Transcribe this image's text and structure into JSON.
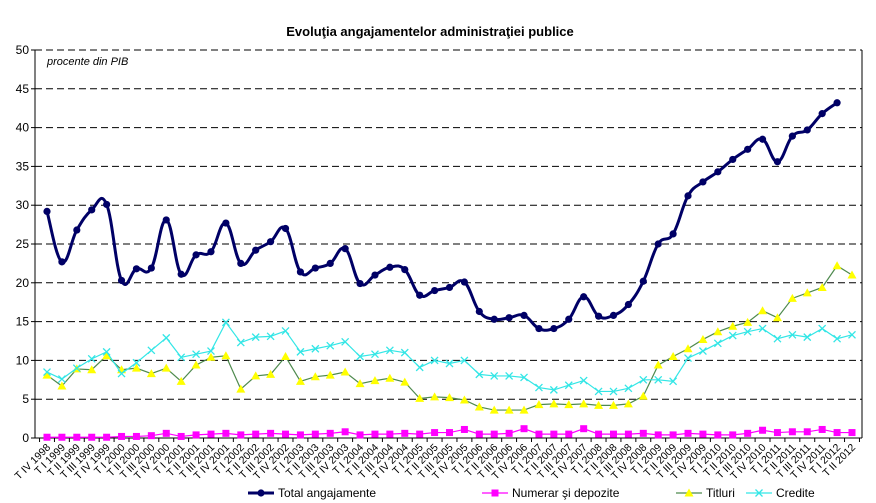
{
  "chart_data": {
    "type": "line",
    "title": "Evoluţia angajamentelor administraţiei publice",
    "unit_label": "procente din PIB",
    "xlabel": "",
    "ylabel": "procente din PIB",
    "ylim": [
      0,
      50
    ],
    "yticks": [
      0,
      5,
      10,
      15,
      20,
      25,
      30,
      35,
      40,
      45,
      50
    ],
    "grid": "horizontal dashed",
    "legend_position": "bottom",
    "categories": [
      "T IV 1998",
      "T I 1999",
      "T II 1999",
      "T III 1999",
      "T IV 1999",
      "T I 2000",
      "T II 2000",
      "T III 2000",
      "T IV 2000",
      "T I 2001",
      "T II 2001",
      "T III 2001",
      "T IV 2001",
      "T I 2002",
      "T II 2002",
      "T III 2002",
      "T IV 2002",
      "T I 2003",
      "T II 2003",
      "T III 2003",
      "T IV 2003",
      "T I 2004",
      "T II 2004",
      "T III 2004",
      "T IV 2004",
      "T I 2005",
      "T II 2005",
      "T III 2005",
      "T IV 2005",
      "T I 2006",
      "T II 2006",
      "T III 2006",
      "T IV 2006",
      "T I 2007",
      "T II 2007",
      "T III 2007",
      "T IV 2007",
      "T I 2008",
      "T II 2008",
      "T III 2008",
      "T IV 2008",
      "T I 2009",
      "T II 2009",
      "T III 2009",
      "T IV 2009",
      "T I 2010",
      "T II 2010",
      "T III 2010",
      "T IV 2010",
      "T I 2011",
      "T II 2011",
      "T III 2011",
      "T IV 2011",
      "T I 2012",
      "T II 2012"
    ],
    "series": [
      {
        "name": "Total angajamente",
        "color": "#000066",
        "marker": "circle",
        "smooth": true,
        "values": [
          29.2,
          22.7,
          26.8,
          29.4,
          30.1,
          20.3,
          21.8,
          21.9,
          28.1,
          21.1,
          23.6,
          24.0,
          27.7,
          22.5,
          24.2,
          25.3,
          27.0,
          21.4,
          21.9,
          22.5,
          24.4,
          19.9,
          21.0,
          22.0,
          21.7,
          18.4,
          19.0,
          19.4,
          20.1,
          16.3,
          15.3,
          15.5,
          15.8,
          14.1,
          14.1,
          15.3,
          18.2,
          15.7,
          15.8,
          17.2,
          20.2,
          25.0,
          26.3,
          31.2,
          33.0,
          34.3,
          35.9,
          37.2,
          38.5,
          35.6,
          38.9,
          39.7,
          41.8,
          43.2,
          null
        ]
      },
      {
        "name": "Numerar şi depozite",
        "color": "#FF00FF",
        "marker": "square",
        "smooth": false,
        "values": [
          0.1,
          0.1,
          0.1,
          0.1,
          0.1,
          0.2,
          0.2,
          0.3,
          0.6,
          0.2,
          0.4,
          0.5,
          0.6,
          0.4,
          0.5,
          0.6,
          0.5,
          0.4,
          0.5,
          0.6,
          0.8,
          0.4,
          0.5,
          0.5,
          0.6,
          0.5,
          0.7,
          0.7,
          1.1,
          0.5,
          0.5,
          0.6,
          1.2,
          0.5,
          0.5,
          0.5,
          1.2,
          0.5,
          0.5,
          0.5,
          0.6,
          0.4,
          0.4,
          0.6,
          0.5,
          0.4,
          0.4,
          0.6,
          1.0,
          0.7,
          0.8,
          0.8,
          1.1,
          0.7,
          0.7
        ]
      },
      {
        "name": "Titluri",
        "color": "#FFFF00",
        "line_color": "#4E8A4E",
        "marker": "triangle",
        "smooth": false,
        "values": [
          8.1,
          6.7,
          8.9,
          8.8,
          10.6,
          8.8,
          9.0,
          8.3,
          9.0,
          7.3,
          9.4,
          10.4,
          10.6,
          6.3,
          8.0,
          8.2,
          10.5,
          7.3,
          7.9,
          8.1,
          8.5,
          7.0,
          7.4,
          7.7,
          7.2,
          5.1,
          5.3,
          5.2,
          4.9,
          4.0,
          3.6,
          3.6,
          3.6,
          4.3,
          4.4,
          4.3,
          4.4,
          4.2,
          4.2,
          4.4,
          5.4,
          9.4,
          10.5,
          11.5,
          12.7,
          13.7,
          14.4,
          14.9,
          16.4,
          15.5,
          18.0,
          18.7,
          19.4,
          22.2,
          21.0
        ]
      },
      {
        "name": "Credite",
        "color": "#33E6E6",
        "marker": "x",
        "smooth": false,
        "values": [
          8.5,
          7.6,
          9.0,
          10.2,
          11.1,
          8.3,
          9.7,
          11.3,
          12.9,
          10.4,
          10.8,
          11.2,
          14.9,
          12.3,
          13.0,
          13.1,
          13.8,
          11.1,
          11.5,
          11.9,
          12.4,
          10.5,
          10.8,
          11.3,
          11.0,
          9.1,
          10.0,
          9.6,
          10.0,
          8.2,
          8.0,
          8.0,
          7.8,
          6.5,
          6.2,
          6.8,
          7.4,
          6.0,
          6.0,
          6.4,
          7.5,
          7.5,
          7.3,
          10.3,
          11.2,
          12.2,
          13.2,
          13.7,
          14.1,
          12.8,
          13.3,
          13.0,
          14.1,
          12.8,
          13.3
        ]
      }
    ]
  }
}
